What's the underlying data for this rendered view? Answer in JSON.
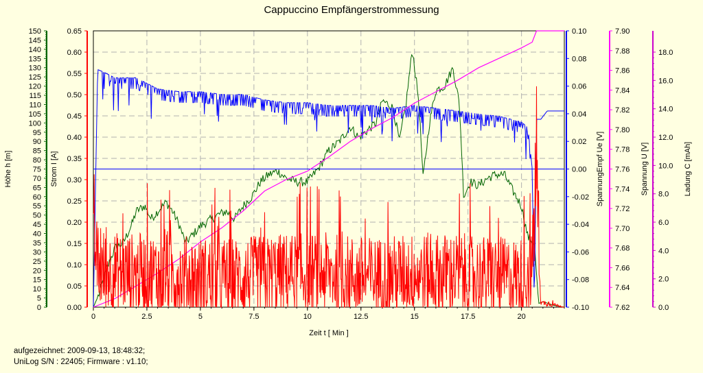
{
  "colors": {
    "background": "#ffffe1",
    "hoehe": "#006400",
    "strom": "#ff0000",
    "spannung_empf": "#0000ff",
    "spannung": "#ff00ff",
    "ladung": "#cc00cc",
    "grid": "#b0b0b0"
  },
  "chart_data": {
    "type": "line",
    "title": "Cappuccino Empfängerstrommessung",
    "xlabel": "Zeit  t  [ Min ]",
    "xlim": [
      0,
      22
    ],
    "xticks": [
      "0",
      "2.5",
      "5",
      "7.5",
      "10",
      "12.5",
      "15",
      "17.5",
      "20"
    ],
    "grid": true,
    "axes": [
      {
        "label": "Höhe  h  [m]",
        "range": [
          0,
          150
        ],
        "ticks": [
          "0",
          "5",
          "10",
          "15",
          "20",
          "25",
          "30",
          "35",
          "40",
          "45",
          "50",
          "55",
          "60",
          "65",
          "70",
          "75",
          "80",
          "85",
          "90",
          "95",
          "100",
          "105",
          "110",
          "115",
          "120",
          "125",
          "130",
          "135",
          "140",
          "145",
          "150"
        ]
      },
      {
        "label": "Strom  I  [A]",
        "range": [
          0,
          0.65
        ],
        "ticks": [
          "0.00",
          "0.05",
          "0.10",
          "0.15",
          "0.20",
          "0.25",
          "0.30",
          "0.35",
          "0.40",
          "0.45",
          "0.50",
          "0.55",
          "0.60",
          "0.65"
        ]
      },
      {
        "label": "SpannungEmpf  Ue  [V]",
        "range": [
          -0.1,
          0.1
        ],
        "ticks": [
          "-0.10",
          "-0.08",
          "-0.06",
          "-0.04",
          "-0.02",
          "0.00",
          "0.02",
          "0.04",
          "0.06",
          "0.08",
          "0.10"
        ]
      },
      {
        "label": "Spannung  U  [V]",
        "range": [
          7.62,
          7.9
        ],
        "ticks": [
          "7.62",
          "7.64",
          "7.66",
          "7.68",
          "7.70",
          "7.72",
          "7.74",
          "7.76",
          "7.78",
          "7.80",
          "7.82",
          "7.84",
          "7.86",
          "7.88",
          "7.90"
        ]
      },
      {
        "label": "Ladung  C  [mAh]",
        "range": [
          0,
          19.5
        ],
        "ticks": [
          "0.0",
          "2.0",
          "4.0",
          "6.0",
          "8.0",
          "10.0",
          "12.0",
          "14.0",
          "16.0",
          "18.0"
        ]
      }
    ],
    "series": [
      {
        "key": "hoehe",
        "axis": 0,
        "x": [
          0,
          0.3,
          0.6,
          1.0,
          1.4,
          1.8,
          2.0,
          2.4,
          2.7,
          3.0,
          3.4,
          3.7,
          4.0,
          4.3,
          4.7,
          5.0,
          5.4,
          5.8,
          6.2,
          6.6,
          7.0,
          7.4,
          7.8,
          8.2,
          8.6,
          9.0,
          9.5,
          10.0,
          10.5,
          11.0,
          11.5,
          12.0,
          12.4,
          12.8,
          13.2,
          13.5,
          13.8,
          14.0,
          14.3,
          14.6,
          14.9,
          15.2,
          15.4,
          15.7,
          16.0,
          16.4,
          16.8,
          17.1,
          17.3,
          17.6,
          18.0,
          18.4,
          18.8,
          19.2,
          19.6,
          20.0,
          20.3,
          20.6,
          20.8,
          21.0,
          21.5,
          22.0
        ],
        "y": [
          0,
          8,
          20,
          32,
          35,
          45,
          52,
          55,
          48,
          52,
          57,
          52,
          45,
          35,
          40,
          44,
          47,
          50,
          52,
          48,
          55,
          60,
          68,
          72,
          74,
          70,
          68,
          68,
          75,
          85,
          90,
          98,
          92,
          96,
          100,
          112,
          110,
          108,
          90,
          110,
          140,
          112,
          70,
          100,
          118,
          120,
          130,
          110,
          60,
          68,
          66,
          70,
          72,
          72,
          63,
          55,
          38,
          35,
          2,
          3,
          1,
          0
        ]
      },
      {
        "key": "spannung_empf",
        "axis": 2,
        "x": [
          0,
          0.2,
          0.5,
          1.0,
          2.0,
          2.5,
          3.0,
          4.0,
          5.0,
          6.0,
          7.0,
          8.0,
          9.0,
          10.0,
          11.0,
          12.0,
          13.0,
          14.0,
          15.0,
          16.0,
          17.0,
          18.0,
          19.0,
          20.0,
          20.3,
          20.5,
          20.6,
          20.7,
          20.9,
          21.2,
          22.0
        ],
        "y": [
          -0.1,
          0.072,
          0.07,
          0.066,
          0.066,
          0.062,
          0.058,
          0.056,
          0.056,
          0.054,
          0.054,
          0.05,
          0.048,
          0.048,
          0.046,
          0.046,
          0.046,
          0.044,
          0.046,
          0.044,
          0.042,
          0.04,
          0.038,
          0.034,
          0.03,
          0.0,
          -0.1,
          0.036,
          0.036,
          0.042,
          0.042
        ]
      },
      {
        "key": "ladung",
        "axis": 4,
        "x": [
          0,
          1,
          2,
          3,
          4,
          5,
          6,
          7,
          8,
          9,
          10,
          11,
          12,
          13,
          14,
          15,
          16,
          17,
          18,
          19,
          20,
          20.5,
          20.7,
          21,
          22
        ],
        "y": [
          0,
          0.6,
          1.5,
          2.4,
          3.4,
          4.6,
          5.6,
          6.8,
          8.2,
          9.0,
          9.6,
          10.6,
          11.7,
          12.6,
          13.4,
          14.4,
          15.2,
          16.0,
          16.9,
          17.6,
          18.3,
          18.7,
          19.5,
          19.5,
          19.5
        ]
      },
      {
        "key": "strom",
        "axis": 1,
        "noise": true,
        "x": [
          0,
          0.3,
          1.3,
          3.0,
          5.0,
          7.0,
          9.0,
          11.0,
          13.0,
          15.0,
          17.0,
          19.0,
          20.0,
          20.5,
          20.7,
          20.9,
          21.2,
          22.0
        ],
        "base": [
          0.15,
          0.09,
          0.08,
          0.08,
          0.07,
          0.07,
          0.08,
          0.08,
          0.07,
          0.08,
          0.08,
          0.07,
          0.07,
          0.09,
          0.35,
          0.01,
          0.01,
          0.0
        ],
        "amp": [
          0.1,
          0.12,
          0.12,
          0.12,
          0.12,
          0.12,
          0.12,
          0.12,
          0.12,
          0.12,
          0.12,
          0.12,
          0.12,
          0.12,
          0.25,
          0.005,
          0.01,
          0.0
        ]
      }
    ],
    "recorded": "aufgezeichnet: 2009-09-13, 18:48:32;",
    "device": "UniLog S/N : 22405; Firmware : v1.10;"
  }
}
